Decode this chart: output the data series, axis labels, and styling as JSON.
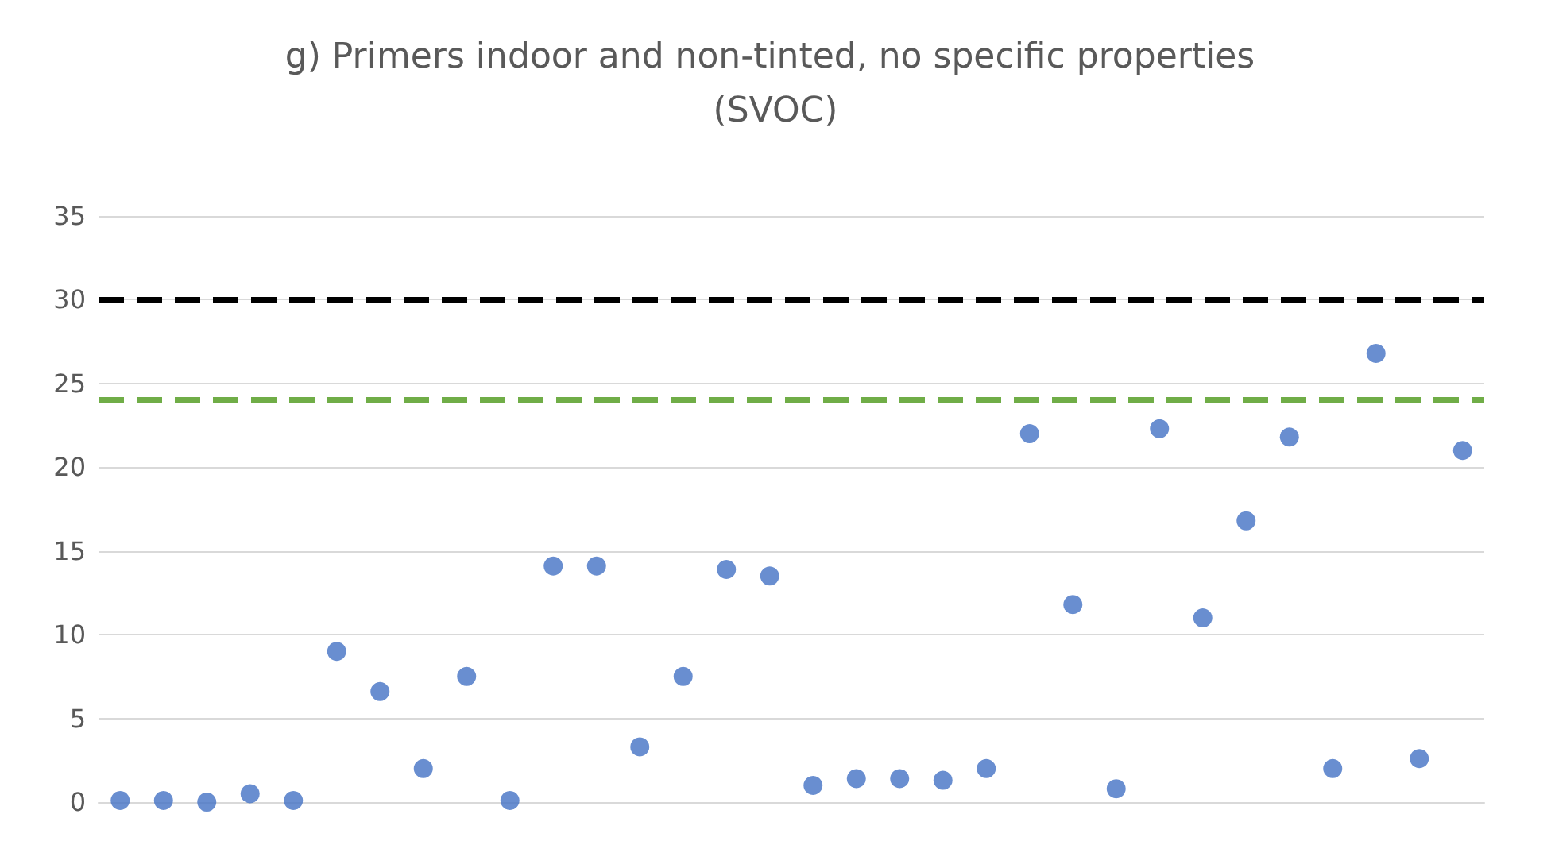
{
  "chart_data": {
    "type": "scatter",
    "title": "g) Primers indoor and non-tinted, no specific properties (SVOC)",
    "categories": [
      null,
      null,
      null,
      null,
      null,
      null,
      null,
      null,
      null,
      null,
      null,
      null,
      null,
      null,
      null,
      null,
      null,
      null,
      null,
      null,
      null,
      null,
      null,
      null,
      null,
      null,
      null,
      null,
      null,
      null,
      null,
      null
    ],
    "series": [
      {
        "color": "#4472c4",
        "values": [
          0.1,
          0.1,
          0,
          0.5,
          0.1,
          9.0,
          6.6,
          2.0,
          7.5,
          0.1,
          14.1,
          14.1,
          3.3,
          7.5,
          13.9,
          13.5,
          1.0,
          1.4,
          1.4,
          1.3,
          2.0,
          22.0,
          11.8,
          0.8,
          22.3,
          11.0,
          16.8,
          21.8,
          2.0,
          26.8,
          2.6,
          21.0
        ]
      }
    ],
    "ylim": [
      0,
      35
    ],
    "yticks": [
      0,
      5,
      10,
      15,
      20,
      25,
      30,
      35
    ],
    "grid": "y",
    "tick_labels": "y",
    "marker": "circle",
    "ref_lines": [
      {
        "axis": "y",
        "value": 30,
        "color": "#000000",
        "line_style": "dashed"
      },
      {
        "axis": "y",
        "value": 24,
        "color": "#70ad47",
        "line_style": "dashed"
      }
    ]
  }
}
